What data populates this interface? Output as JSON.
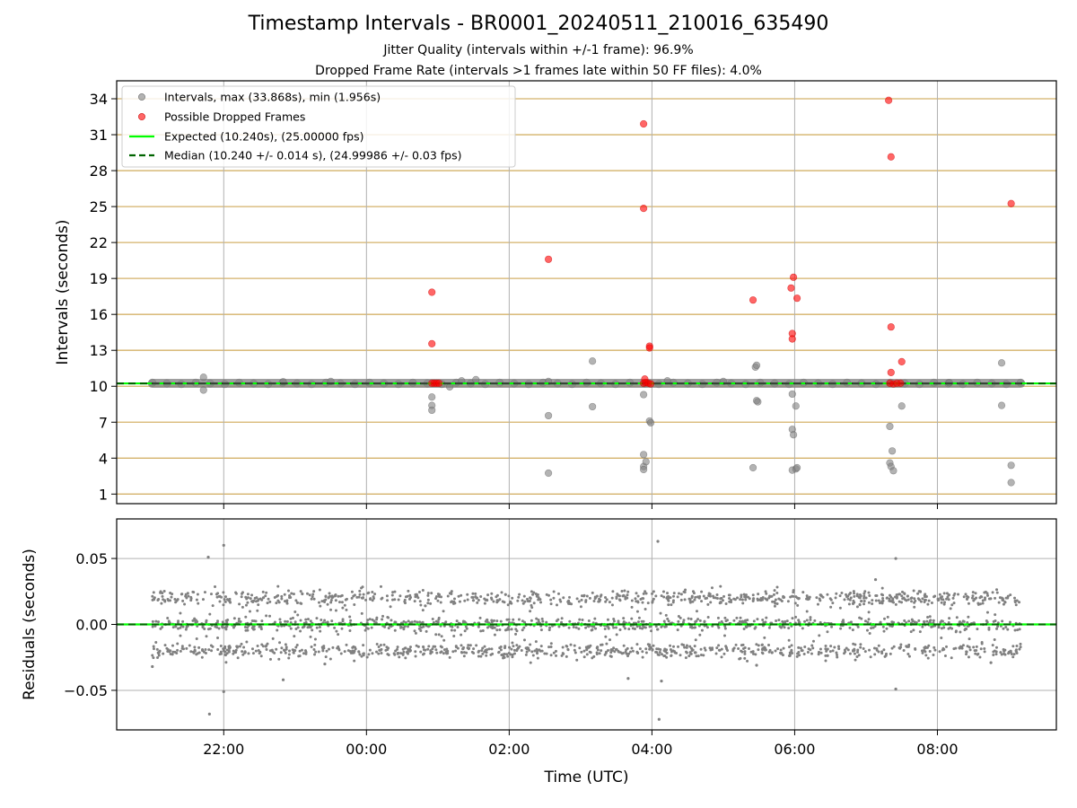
{
  "title": "Timestamp Intervals - BR0001_20240511_210016_635490",
  "subtitle1": "Jitter Quality (intervals within +/-1 frame): 96.9%",
  "subtitle2": "Dropped Frame Rate (intervals >1 frames late within 50 FF files): 4.0%",
  "colors": {
    "intervals": "#808080",
    "dropped": "#ff0000",
    "expected": "#00ff00",
    "median": "#006400",
    "hgrid": "#d4b26a",
    "vgrid": "#b0b0b0"
  },
  "chart_data": [
    {
      "type": "scatter",
      "ylabel": "Intervals (seconds)",
      "xlim": [
        "20:30",
        "09:40"
      ],
      "ylim": [
        0.2,
        35.5
      ],
      "yticks": [
        1,
        4,
        7,
        10,
        13,
        16,
        19,
        22,
        25,
        28,
        31,
        34
      ],
      "xticks": [
        "22:00",
        "00:00",
        "02:00",
        "04:00",
        "06:00",
        "08:00"
      ],
      "grid": true,
      "legend_position": "upper-left",
      "series": [
        {
          "name": "Intervals, max (33.868s), min (1.956s)",
          "role": "intervals",
          "baseline": {
            "x_start": "21:00",
            "x_end": "09:10",
            "y": 10.24
          },
          "points": [
            {
              "x": "21:43",
              "y": 10.75
            },
            {
              "x": "21:43",
              "y": 9.68
            },
            {
              "x": "22:50",
              "y": 10.38
            },
            {
              "x": "23:30",
              "y": 10.4
            },
            {
              "x": "00:55",
              "y": 9.1
            },
            {
              "x": "00:55",
              "y": 8.4
            },
            {
              "x": "00:55",
              "y": 8.0
            },
            {
              "x": "01:10",
              "y": 9.95
            },
            {
              "x": "01:20",
              "y": 10.45
            },
            {
              "x": "01:32",
              "y": 10.55
            },
            {
              "x": "02:33",
              "y": 10.4
            },
            {
              "x": "02:33",
              "y": 7.55
            },
            {
              "x": "02:33",
              "y": 2.75
            },
            {
              "x": "03:10",
              "y": 12.1
            },
            {
              "x": "03:10",
              "y": 8.3
            },
            {
              "x": "03:53",
              "y": 9.3
            },
            {
              "x": "03:53",
              "y": 4.3
            },
            {
              "x": "03:53",
              "y": 3.3
            },
            {
              "x": "03:53",
              "y": 3.05
            },
            {
              "x": "03:55",
              "y": 3.7
            },
            {
              "x": "03:58",
              "y": 7.1
            },
            {
              "x": "03:59",
              "y": 6.95
            },
            {
              "x": "04:13",
              "y": 10.45
            },
            {
              "x": "05:00",
              "y": 10.4
            },
            {
              "x": "05:25",
              "y": 3.2
            },
            {
              "x": "05:27",
              "y": 11.6
            },
            {
              "x": "05:28",
              "y": 11.75
            },
            {
              "x": "05:28",
              "y": 8.8
            },
            {
              "x": "05:29",
              "y": 8.7
            },
            {
              "x": "05:58",
              "y": 9.35
            },
            {
              "x": "05:58",
              "y": 6.4
            },
            {
              "x": "05:58",
              "y": 3.0
            },
            {
              "x": "05:59",
              "y": 5.95
            },
            {
              "x": "06:01",
              "y": 8.35
            },
            {
              "x": "06:01",
              "y": 3.1
            },
            {
              "x": "06:02",
              "y": 3.2
            },
            {
              "x": "07:20",
              "y": 6.65
            },
            {
              "x": "07:20",
              "y": 3.6
            },
            {
              "x": "07:21",
              "y": 3.3
            },
            {
              "x": "07:22",
              "y": 4.6
            },
            {
              "x": "07:23",
              "y": 2.95
            },
            {
              "x": "07:30",
              "y": 8.35
            },
            {
              "x": "08:10",
              "y": 10.3
            },
            {
              "x": "08:54",
              "y": 11.95
            },
            {
              "x": "08:54",
              "y": 8.4
            },
            {
              "x": "09:02",
              "y": 3.4
            },
            {
              "x": "09:02",
              "y": 1.96
            }
          ]
        },
        {
          "name": "Possible Dropped Frames",
          "role": "dropped",
          "points": [
            {
              "x": "00:55",
              "y": 17.85
            },
            {
              "x": "00:55",
              "y": 13.55
            },
            {
              "x": "00:55",
              "y": 10.25
            },
            {
              "x": "00:57",
              "y": 10.25
            },
            {
              "x": "00:59",
              "y": 10.25
            },
            {
              "x": "01:01",
              "y": 10.25
            },
            {
              "x": "02:33",
              "y": 20.6
            },
            {
              "x": "03:53",
              "y": 31.9
            },
            {
              "x": "03:53",
              "y": 24.85
            },
            {
              "x": "03:53",
              "y": 10.25
            },
            {
              "x": "03:55",
              "y": 10.3
            },
            {
              "x": "03:57",
              "y": 10.25
            },
            {
              "x": "03:59",
              "y": 10.2
            },
            {
              "x": "03:54",
              "y": 10.6
            },
            {
              "x": "03:58",
              "y": 13.35
            },
            {
              "x": "03:58",
              "y": 13.2
            },
            {
              "x": "05:25",
              "y": 17.2
            },
            {
              "x": "05:57",
              "y": 18.2
            },
            {
              "x": "05:59",
              "y": 19.1
            },
            {
              "x": "06:02",
              "y": 17.35
            },
            {
              "x": "05:58",
              "y": 14.4
            },
            {
              "x": "05:58",
              "y": 13.95
            },
            {
              "x": "07:19",
              "y": 33.87
            },
            {
              "x": "07:21",
              "y": 29.15
            },
            {
              "x": "07:21",
              "y": 14.95
            },
            {
              "x": "07:21",
              "y": 11.15
            },
            {
              "x": "07:20",
              "y": 10.25
            },
            {
              "x": "07:23",
              "y": 10.2
            },
            {
              "x": "07:26",
              "y": 10.25
            },
            {
              "x": "07:29",
              "y": 10.25
            },
            {
              "x": "07:30",
              "y": 12.05
            },
            {
              "x": "09:02",
              "y": 25.25
            }
          ]
        },
        {
          "name": "Expected (10.240s), (25.00000 fps)",
          "role": "expected",
          "y": 10.24
        },
        {
          "name": "Median (10.240 +/- 0.014 s), (24.99986 +/- 0.03 fps)",
          "role": "median",
          "y": 10.24
        }
      ]
    },
    {
      "type": "scatter",
      "xlabel": "Time (UTC)",
      "ylabel": "Residuals (seconds)",
      "xlim": [
        "20:30",
        "09:40"
      ],
      "ylim": [
        -0.08,
        0.08
      ],
      "yticks": [
        0.05,
        0.0,
        -0.05
      ],
      "ytick_labels": [
        "0.05",
        "0.00",
        "−0.05"
      ],
      "xticks": [
        "22:00",
        "00:00",
        "02:00",
        "04:00",
        "06:00",
        "08:00"
      ],
      "grid": true,
      "series": [
        {
          "name": "Residuals",
          "dense_band": {
            "x_start": "21:00",
            "x_end": "09:10",
            "levels": [
              0.02,
              0.0,
              -0.02
            ],
            "spread": 0.006
          },
          "outliers": [
            {
              "x": "21:47",
              "y": 0.051
            },
            {
              "x": "22:00",
              "y": 0.06
            },
            {
              "x": "21:48",
              "y": -0.068
            },
            {
              "x": "22:00",
              "y": -0.051
            },
            {
              "x": "22:50",
              "y": -0.042
            },
            {
              "x": "23:25",
              "y": -0.03
            },
            {
              "x": "21:00",
              "y": -0.032
            },
            {
              "x": "04:05",
              "y": 0.063
            },
            {
              "x": "04:08",
              "y": -0.043
            },
            {
              "x": "04:06",
              "y": -0.072
            },
            {
              "x": "03:40",
              "y": -0.041
            },
            {
              "x": "07:25",
              "y": 0.05
            },
            {
              "x": "07:25",
              "y": -0.049
            },
            {
              "x": "07:08",
              "y": 0.034
            },
            {
              "x": "05:28",
              "y": -0.031
            },
            {
              "x": "08:45",
              "y": -0.029
            }
          ]
        },
        {
          "name": "Residual zero line",
          "y": 0.0
        }
      ]
    }
  ]
}
